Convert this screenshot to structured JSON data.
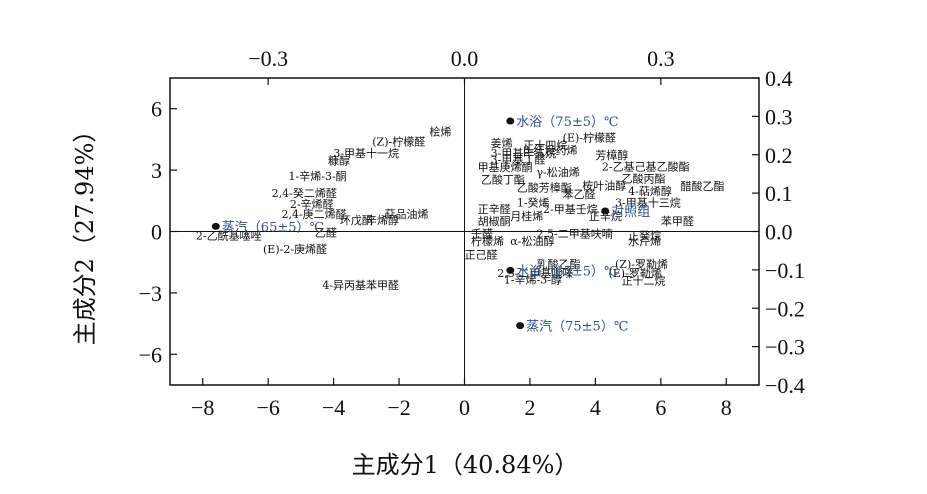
{
  "chart_data": {
    "type": "scatter",
    "xlabel": "主成分1（40.84%）",
    "ylabel": "主成分2（27.94%）",
    "xlim": [
      -9,
      9
    ],
    "ylim": [
      -7.5,
      7.5
    ],
    "x_ticks": [
      -8,
      -6,
      -4,
      -2,
      0,
      2,
      4,
      6,
      8
    ],
    "x_tick_labels": [
      "−8",
      "−6",
      "−4",
      "−2",
      "0",
      "2",
      "4",
      "6",
      "8"
    ],
    "y_ticks": [
      -6,
      -3,
      0,
      3,
      6
    ],
    "y_tick_labels": [
      "−6",
      "−3",
      "0",
      "3",
      "6"
    ],
    "top_xlim": [
      -0.45,
      0.45
    ],
    "top_ticks": [
      -0.3,
      0.0,
      0.3
    ],
    "top_tick_labels": [
      "−0.3",
      "0.0",
      "0.3"
    ],
    "right_ylim": [
      -0.4,
      0.4
    ],
    "right_ticks": [
      0.4,
      0.3,
      0.2,
      0.1,
      0.0,
      -0.1,
      -0.2,
      -0.3,
      -0.4
    ],
    "right_tick_labels": [
      "0.4",
      "0.3",
      "0.2",
      "0.1",
      "0.0",
      "−0.1",
      "−0.2",
      "−0.3",
      "−0.4"
    ],
    "grid": false,
    "reference_lines": "x=0 and y=0",
    "samples": [
      {
        "label": "水浴（75±5）℃",
        "x": 1.4,
        "y": 5.4
      },
      {
        "label": "蒸汽（65±5）℃",
        "x": -7.6,
        "y": 0.25
      },
      {
        "label": "对照组",
        "x": 4.3,
        "y": 1.0
      },
      {
        "label": "水浴（65±5）℃",
        "x": 1.4,
        "y": -1.9
      },
      {
        "label": "蒸汽（75±5）℃",
        "x": 1.7,
        "y": -4.6
      }
    ],
    "variables": [
      {
        "label": "桧烯",
        "x": -0.02,
        "y": 0.26
      },
      {
        "label": "(Z)-柠檬醛",
        "x": -0.06,
        "y": 0.235
      },
      {
        "label": "3-甲基十一烷",
        "x": -0.1,
        "y": 0.205
      },
      {
        "label": "糠醇",
        "x": -0.175,
        "y": 0.185
      },
      {
        "label": "1-辛烯-3-酮",
        "x": -0.18,
        "y": 0.145
      },
      {
        "label": "2,4-癸二烯醛",
        "x": -0.195,
        "y": 0.1
      },
      {
        "label": "2-辛烯醛",
        "x": -0.2,
        "y": 0.072
      },
      {
        "label": "2,4-庚二烯醛",
        "x": -0.18,
        "y": 0.045
      },
      {
        "label": "萜品油烯",
        "x": -0.055,
        "y": 0.045
      },
      {
        "label": "环戊酮",
        "x": -0.14,
        "y": 0.03
      },
      {
        "label": "辛烯醇",
        "x": -0.1,
        "y": 0.03
      },
      {
        "label": "乙醛",
        "x": -0.195,
        "y": -0.003
      },
      {
        "label": "2-乙酰基噻唑",
        "x": -0.31,
        "y": -0.01
      },
      {
        "label": "(E)-2-庚烯醛",
        "x": -0.21,
        "y": -0.045
      },
      {
        "label": "(E)-柠檬醛",
        "x": 0.15,
        "y": 0.245
      },
      {
        "label": "姜烯",
        "x": 0.04,
        "y": 0.23
      },
      {
        "label": "正十四烷",
        "x": 0.09,
        "y": 0.225
      },
      {
        "label": "β-红没药烯",
        "x": 0.09,
        "y": 0.212
      },
      {
        "label": "3-甲基十五烷",
        "x": 0.04,
        "y": 0.205
      },
      {
        "label": "芳樟醇",
        "x": 0.2,
        "y": 0.2
      },
      {
        "label": "3-甲基丁醛",
        "x": 0.04,
        "y": 0.188
      },
      {
        "label": "2-乙基己基乙酸酯",
        "x": 0.21,
        "y": 0.17
      },
      {
        "label": "甲基庚烯酮",
        "x": 0.02,
        "y": 0.168
      },
      {
        "label": "γ-松油烯",
        "x": 0.11,
        "y": 0.155
      },
      {
        "label": "乙酸丁酯",
        "x": 0.025,
        "y": 0.135
      },
      {
        "label": "乙酸丙酯",
        "x": 0.24,
        "y": 0.138
      },
      {
        "label": "乙酸芳樟酯",
        "x": 0.08,
        "y": 0.115
      },
      {
        "label": "桉叶油醇",
        "x": 0.18,
        "y": 0.12
      },
      {
        "label": "醋酸乙酯",
        "x": 0.33,
        "y": 0.118
      },
      {
        "label": "4-萜烯醇",
        "x": 0.25,
        "y": 0.105
      },
      {
        "label": "苯乙醛",
        "x": 0.15,
        "y": 0.098
      },
      {
        "label": "1-癸烯",
        "x": 0.08,
        "y": 0.075
      },
      {
        "label": "3-甲基十三烷",
        "x": 0.23,
        "y": 0.075
      },
      {
        "label": "2-甲基壬烷",
        "x": 0.12,
        "y": 0.058
      },
      {
        "label": "正辛醛",
        "x": 0.02,
        "y": 0.058
      },
      {
        "label": "月桂烯",
        "x": 0.07,
        "y": 0.04
      },
      {
        "label": "正辛烷",
        "x": 0.19,
        "y": 0.04
      },
      {
        "label": "苯甲醛",
        "x": 0.3,
        "y": 0.028
      },
      {
        "label": "胡椒酮",
        "x": 0.02,
        "y": 0.028
      },
      {
        "label": "壬醛",
        "x": 0.01,
        "y": -0.005
      },
      {
        "label": "2,5-二甲基呋喃",
        "x": 0.11,
        "y": -0.005
      },
      {
        "label": "正癸烷",
        "x": 0.25,
        "y": -0.01
      },
      {
        "label": "柠檬烯",
        "x": 0.01,
        "y": -0.025
      },
      {
        "label": "α-松油醇",
        "x": 0.07,
        "y": -0.025
      },
      {
        "label": "水芹烯",
        "x": 0.25,
        "y": -0.025
      },
      {
        "label": "正己醛",
        "x": 0.0,
        "y": -0.06
      },
      {
        "label": "乳酸乙酯",
        "x": 0.11,
        "y": -0.085
      },
      {
        "label": "(Z)-罗勒烯",
        "x": 0.23,
        "y": -0.085
      },
      {
        "label": "2,3-二甲基吡嗪",
        "x": 0.05,
        "y": -0.108
      },
      {
        "label": "(E)-罗勒烯",
        "x": 0.22,
        "y": -0.108
      },
      {
        "label": "1-辛烯-3-醇",
        "x": 0.06,
        "y": -0.125
      },
      {
        "label": "正十二烷",
        "x": 0.24,
        "y": -0.128
      },
      {
        "label": "4-异丙基苯甲醛",
        "x": -0.1,
        "y": -0.14
      }
    ]
  }
}
